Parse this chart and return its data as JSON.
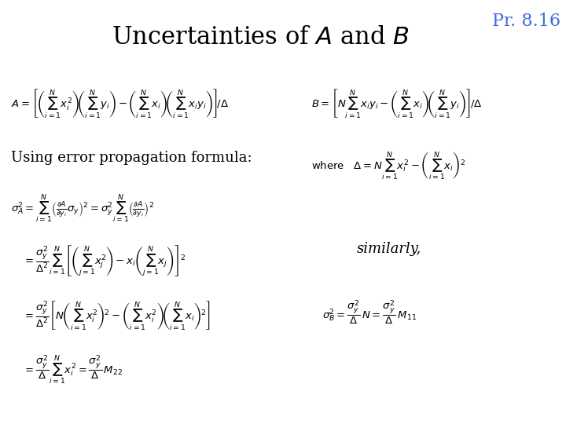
{
  "title": "Uncertainties of $\\mathit{A}$ and $\\mathit{B}$",
  "title_fontsize": 22,
  "title_color": "black",
  "pr_label": "Pr. 8.16",
  "pr_color": "#4169E1",
  "pr_fontsize": 16,
  "background_color": "white",
  "eq_color": "black",
  "text_color": "black",
  "eq_fontsize": 9.5,
  "label_fontsize": 13,
  "eq_A": "$A = \\left[\\left(\\sum_{i=1}^{N} x_i^2\\right)\\!\\left(\\sum_{i=1}^{N} y_i\\right) - \\left(\\sum_{i=1}^{N} x_i\\right)\\!\\left(\\sum_{i=1}^{N} x_i y_i\\right)\\right]\\!/\\Delta$",
  "eq_B": "$B = \\left[N\\sum_{i=1}^{N} x_i y_i - \\left(\\sum_{i=1}^{N} x_i\\right)\\!\\left(\\sum_{i=1}^{N} y_i\\right)\\right]\\!/\\Delta$",
  "label_using": "Using error propagation formula:",
  "eq_where": "$\\mathrm{where}\\quad \\Delta = N\\sum_{i=1}^{N} x_i^2 - \\left(\\sum_{i=1}^{N} x_i\\right)^{2}$",
  "eq_sigma1": "$\\sigma_A^2 = \\sum_{i=1}^{N}\\left(\\frac{\\partial A}{\\partial y_i}\\sigma_y\\right)^{2} = \\sigma_y^2 \\sum_{i=1}^{N}\\left(\\frac{\\partial A}{\\partial y_i}\\right)^{2}$",
  "eq_sigma2": "$= \\dfrac{\\sigma_y^2}{\\Delta^2}\\sum_{i=1}^{N}\\left[\\left(\\sum_{j=1}^{N} x_j^2\\right) - x_i\\left(\\sum_{j=1}^{N} x_j\\right)\\right]^{2}$",
  "eq_sigma3": "$= \\dfrac{\\sigma_y^2}{\\Delta^2}\\left[N\\left(\\sum_{i=1}^{N} x_i^2\\right)^{2} - \\left(\\sum_{i=1}^{N} x_i^2\\right)\\!\\left(\\sum_{i=1}^{N} x_i\\right)^{2}\\right]$",
  "eq_sigma4": "$= \\dfrac{\\sigma_y^2}{\\Delta}\\sum_{i=1}^{N} x_i^2 = \\dfrac{\\sigma_y^2}{\\Delta}\\,M_{22}$",
  "label_similarly": "similarly,",
  "eq_sigmaB": "$\\sigma_B^2 = \\dfrac{\\sigma_y^2}{\\Delta}\\,N = \\dfrac{\\sigma_y^2}{\\Delta}\\,M_{11}$"
}
